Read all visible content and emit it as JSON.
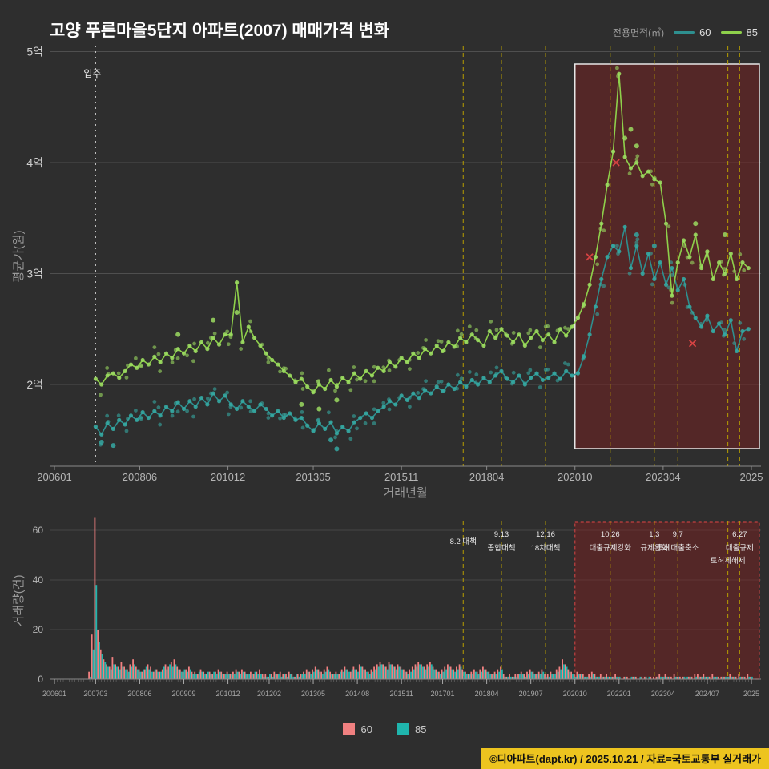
{
  "title": "고양 푸른마을5단지 아파트(2007) 매매가격 변화",
  "legend_top": {
    "label": "전용면적(㎡)",
    "items": [
      {
        "label": "60",
        "color": "#2e8f8f"
      },
      {
        "label": "85",
        "color": "#8ed04b"
      }
    ]
  },
  "legend_bottom": {
    "items": [
      {
        "label": "60",
        "color": "#f08080"
      },
      {
        "label": "85",
        "color": "#1fb5ad"
      }
    ]
  },
  "footer": "©디아파트(dapt.kr) / 2025.10.21 / 자료=국토교통부 실거래가",
  "annotations": {
    "move_in": "입주"
  },
  "colors": {
    "background": "#2e2e2e",
    "grid": "#4f4f4f",
    "axis": "#8a8a8a",
    "tick_text": "#b5b5b5",
    "policy_line": "#b89f00",
    "highlight_fill": "rgba(130,30,30,0.45)",
    "highlight_stroke_top": "#e6e6e6",
    "highlight_stroke_bottom": "#c04040",
    "marker": "#d84343",
    "move_in_line": "#cfcfcf"
  },
  "chart_data": [
    {
      "type": "scatter",
      "title": "매매가격 변화",
      "xlabel": "거래년월",
      "ylabel": "평균가(원)",
      "ylim": [
        1.35,
        5.05
      ],
      "y_ticks": [
        {
          "value": 2,
          "label": "2억"
        },
        {
          "value": 3,
          "label": "3억"
        },
        {
          "value": 4,
          "label": "4억"
        },
        {
          "value": 5,
          "label": "5억"
        }
      ],
      "x_ticks": [
        {
          "month": "200601",
          "label": "200601"
        },
        {
          "month": "200806",
          "label": "200806"
        },
        {
          "month": "201012",
          "label": "201012"
        },
        {
          "month": "201305",
          "label": "201305"
        },
        {
          "month": "201511",
          "label": "201511"
        },
        {
          "month": "201804",
          "label": "201804"
        },
        {
          "month": "202010",
          "label": "202010"
        },
        {
          "month": "202304",
          "label": "202304"
        },
        {
          "month": "202510",
          "label": "2025"
        }
      ],
      "move_in_month": "200703",
      "highlight": {
        "from": "202010"
      },
      "marker_color": "#d84343",
      "markers": [
        {
          "month": "202103",
          "value": 3.15,
          "series": "60"
        },
        {
          "month": "202112",
          "value": 4.0,
          "series": "85"
        },
        {
          "month": "202402",
          "value": 2.37,
          "series": "60"
        }
      ],
      "series": [
        {
          "name": "60",
          "color": "#2e8f8f",
          "point_color": "#35a8a2",
          "start": "200703",
          "step_months": 2,
          "values": [
            1.62,
            1.55,
            1.65,
            1.6,
            1.68,
            1.64,
            1.72,
            1.68,
            1.75,
            1.7,
            1.76,
            1.72,
            1.8,
            1.76,
            1.84,
            1.78,
            1.85,
            1.8,
            1.88,
            1.82,
            1.92,
            1.85,
            1.9,
            1.82,
            1.78,
            1.85,
            1.8,
            1.76,
            1.82,
            1.78,
            1.72,
            1.76,
            1.7,
            1.74,
            1.68,
            1.7,
            1.63,
            1.58,
            1.65,
            1.6,
            1.66,
            1.56,
            1.62,
            1.58,
            1.66,
            1.7,
            1.74,
            1.7,
            1.76,
            1.8,
            1.85,
            1.82,
            1.9,
            1.86,
            1.92,
            1.88,
            1.95,
            1.92,
            1.98,
            1.94,
            2.0,
            1.96,
            2.02,
            1.98,
            2.04,
            2.0,
            2.06,
            2.02,
            2.08,
            2.12,
            2.05,
            2.02,
            2.08,
            2.0,
            2.06,
            2.1,
            2.04,
            2.06,
            2.1,
            2.05,
            2.12,
            2.08,
            2.1,
            2.25,
            2.45,
            2.7,
            2.95,
            3.15,
            3.25,
            3.2,
            3.42,
            3.05,
            3.25,
            3.0,
            3.18,
            2.95,
            3.1,
            2.9,
            3.05,
            2.85,
            2.95,
            2.7,
            2.6,
            2.52,
            2.62,
            2.48,
            2.55,
            2.45,
            2.58,
            2.3,
            2.48,
            2.5
          ],
          "extra_points": [
            [
              "200705",
              1.48
            ],
            [
              "200709",
              1.45
            ],
            [
              "201311",
              1.5
            ],
            [
              "201401",
              1.42
            ],
            [
              "202207",
              3.35
            ],
            [
              "202301",
              3.25
            ]
          ]
        },
        {
          "name": "85",
          "color": "#8ed04b",
          "point_color": "#9bdb60",
          "start": "200703",
          "step_months": 2,
          "values": [
            2.05,
            2.0,
            2.08,
            2.1,
            2.06,
            2.12,
            2.18,
            2.15,
            2.22,
            2.18,
            2.25,
            2.2,
            2.28,
            2.24,
            2.32,
            2.28,
            2.35,
            2.3,
            2.38,
            2.32,
            2.42,
            2.36,
            2.45,
            2.45,
            2.92,
            2.38,
            2.52,
            2.42,
            2.35,
            2.28,
            2.22,
            2.18,
            2.12,
            2.08,
            2.02,
            2.05,
            1.98,
            1.93,
            2.0,
            1.96,
            2.04,
            1.98,
            2.06,
            2.02,
            2.1,
            2.05,
            2.12,
            2.08,
            2.15,
            2.12,
            2.2,
            2.16,
            2.24,
            2.2,
            2.28,
            2.24,
            2.32,
            2.28,
            2.35,
            2.3,
            2.38,
            2.34,
            2.42,
            2.38,
            2.45,
            2.4,
            2.35,
            2.48,
            2.42,
            2.5,
            2.44,
            2.38,
            2.45,
            2.35,
            2.42,
            2.48,
            2.4,
            2.45,
            2.38,
            2.5,
            2.44,
            2.52,
            2.6,
            2.72,
            2.9,
            3.15,
            3.45,
            3.8,
            4.1,
            4.8,
            4.05,
            3.95,
            4.0,
            3.88,
            3.92,
            3.85,
            3.82,
            3.45,
            2.8,
            3.1,
            3.3,
            3.15,
            3.35,
            3.05,
            3.2,
            2.95,
            3.1,
            3.0,
            3.18,
            2.95,
            3.1,
            3.05
          ],
          "extra_points": [
            [
              "200907",
              2.45
            ],
            [
              "201007",
              2.58
            ],
            [
              "201103",
              2.65
            ],
            [
              "201301",
              1.82
            ],
            [
              "201307",
              1.78
            ],
            [
              "201401",
              1.86
            ],
            [
              "202203",
              4.22
            ],
            [
              "202205",
              4.3
            ],
            [
              "202207",
              4.15
            ],
            [
              "202403",
              3.45
            ],
            [
              "202501",
              3.35
            ]
          ]
        }
      ]
    },
    {
      "type": "bar",
      "ylabel": "거래량(건)",
      "y_ticks": [
        0,
        20,
        40,
        60
      ],
      "x_ticks": [
        {
          "month": "200601",
          "label": "200601"
        },
        {
          "month": "200703",
          "label": "200703"
        },
        {
          "month": "200806",
          "label": "200806"
        },
        {
          "month": "200909",
          "label": "200909"
        },
        {
          "month": "201012",
          "label": "201012"
        },
        {
          "month": "201202",
          "label": "201202"
        },
        {
          "month": "201305",
          "label": "201305"
        },
        {
          "month": "201408",
          "label": "201408"
        },
        {
          "month": "201511",
          "label": "201511"
        },
        {
          "month": "201701",
          "label": "201701"
        },
        {
          "month": "201804",
          "label": "201804"
        },
        {
          "month": "201907",
          "label": "201907"
        },
        {
          "month": "202010",
          "label": "202010"
        },
        {
          "month": "202201",
          "label": "202201"
        },
        {
          "month": "202304",
          "label": "202304"
        },
        {
          "month": "202407",
          "label": "202407"
        },
        {
          "month": "202510",
          "label": "2025"
        }
      ],
      "start": "200701",
      "highlight": {
        "from": "202010"
      },
      "policy_annotations": [
        {
          "month": "201708",
          "labels": [
            [
              "8.2 대책",
              9
            ]
          ]
        },
        {
          "month": "201809",
          "labels": [
            [
              "9.13",
              0
            ],
            [
              "종합대책",
              17
            ]
          ]
        },
        {
          "month": "201912",
          "labels": [
            [
              "12.16",
              0
            ],
            [
              "18차대책",
              17
            ]
          ]
        },
        {
          "month": "202110",
          "labels": [
            [
              "10.26",
              0
            ],
            [
              "대출규제강화",
              17
            ]
          ]
        },
        {
          "month": "202301",
          "labels": [
            [
              "1.3",
              0
            ],
            [
              "규제완화",
              17
            ]
          ]
        },
        {
          "month": "202309",
          "labels": [
            [
              "9.7",
              0
            ],
            [
              "특례대출축소",
              17
            ]
          ]
        },
        {
          "month": "202502",
          "labels": [
            [
              "토허제해제",
              33
            ]
          ]
        },
        {
          "month": "202506",
          "labels": [
            [
              "6.27",
              0
            ],
            [
              "대출규제",
              17
            ]
          ]
        }
      ],
      "series": [
        {
          "name": "60",
          "color": "#f08080",
          "values": [
            3,
            18,
            65,
            20,
            12,
            8,
            6,
            5,
            9,
            6,
            5,
            7,
            5,
            4,
            6,
            8,
            5,
            4,
            3,
            4,
            6,
            5,
            3,
            4,
            3,
            4,
            6,
            5,
            7,
            8,
            5,
            4,
            3,
            4,
            5,
            3,
            3,
            2,
            4,
            3,
            2,
            3,
            2,
            3,
            4,
            3,
            2,
            3,
            2,
            3,
            4,
            3,
            4,
            3,
            2,
            3,
            2,
            3,
            4,
            2,
            2,
            1,
            2,
            3,
            2,
            3,
            2,
            2,
            3,
            2,
            1,
            2,
            2,
            3,
            4,
            3,
            4,
            5,
            4,
            3,
            4,
            5,
            3,
            2,
            3,
            2,
            4,
            5,
            4,
            3,
            5,
            4,
            6,
            5,
            4,
            3,
            4,
            5,
            6,
            7,
            6,
            5,
            7,
            6,
            5,
            6,
            5,
            4,
            3,
            4,
            5,
            6,
            7,
            6,
            5,
            6,
            7,
            5,
            4,
            3,
            4,
            5,
            6,
            5,
            4,
            5,
            6,
            4,
            3,
            2,
            3,
            4,
            3,
            4,
            5,
            4,
            3,
            2,
            3,
            4,
            5,
            2,
            1,
            2,
            1,
            2,
            2,
            3,
            2,
            3,
            4,
            3,
            2,
            3,
            4,
            2,
            2,
            3,
            2,
            4,
            5,
            8,
            6,
            4,
            3,
            2,
            3,
            2,
            2,
            1,
            2,
            3,
            2,
            1,
            2,
            1,
            2,
            1,
            1,
            2,
            1,
            0,
            1,
            1,
            0,
            1,
            1,
            0,
            1,
            1,
            0,
            1,
            1,
            1,
            2,
            1,
            2,
            1,
            1,
            2,
            1,
            1,
            1,
            0,
            1,
            1,
            2,
            2,
            1,
            2,
            1,
            1,
            2,
            1,
            1,
            1,
            1,
            1,
            2,
            1,
            1,
            2,
            1,
            1,
            2,
            1
          ]
        },
        {
          "name": "85",
          "color": "#1fb5ad",
          "values": [
            1,
            12,
            38,
            15,
            10,
            7,
            5,
            4,
            6,
            5,
            4,
            5,
            4,
            3,
            5,
            6,
            4,
            3,
            4,
            5,
            4,
            3,
            4,
            3,
            3,
            5,
            4,
            6,
            5,
            6,
            4,
            3,
            4,
            3,
            4,
            2,
            2,
            3,
            3,
            2,
            3,
            2,
            3,
            2,
            3,
            2,
            2,
            2,
            2,
            2,
            3,
            2,
            3,
            2,
            2,
            2,
            3,
            2,
            2,
            1,
            1,
            2,
            1,
            2,
            2,
            1,
            2,
            1,
            2,
            1,
            2,
            1,
            2,
            2,
            3,
            2,
            3,
            4,
            3,
            2,
            3,
            4,
            2,
            2,
            2,
            3,
            3,
            4,
            3,
            4,
            4,
            3,
            5,
            4,
            3,
            2,
            3,
            4,
            5,
            6,
            5,
            4,
            6,
            5,
            4,
            5,
            4,
            3,
            2,
            3,
            4,
            5,
            6,
            5,
            4,
            5,
            6,
            4,
            3,
            2,
            3,
            4,
            5,
            4,
            3,
            4,
            5,
            3,
            2,
            2,
            2,
            3,
            2,
            3,
            4,
            3,
            2,
            2,
            2,
            3,
            4,
            1,
            1,
            1,
            1,
            1,
            2,
            2,
            1,
            2,
            3,
            2,
            2,
            2,
            3,
            1,
            1,
            2,
            2,
            3,
            4,
            6,
            5,
            3,
            2,
            1,
            2,
            2,
            1,
            1,
            1,
            2,
            1,
            1,
            1,
            1,
            1,
            1,
            1,
            1,
            1,
            0,
            1,
            0,
            1,
            1,
            0,
            1,
            0,
            1,
            1,
            0,
            0,
            1,
            1,
            1,
            1,
            1,
            0,
            1,
            1,
            0,
            1,
            1,
            1,
            0,
            1,
            1,
            1,
            1,
            1,
            0,
            1,
            1,
            0,
            1,
            1,
            1,
            1,
            1,
            0,
            1,
            1,
            0,
            1,
            1
          ]
        }
      ]
    }
  ]
}
